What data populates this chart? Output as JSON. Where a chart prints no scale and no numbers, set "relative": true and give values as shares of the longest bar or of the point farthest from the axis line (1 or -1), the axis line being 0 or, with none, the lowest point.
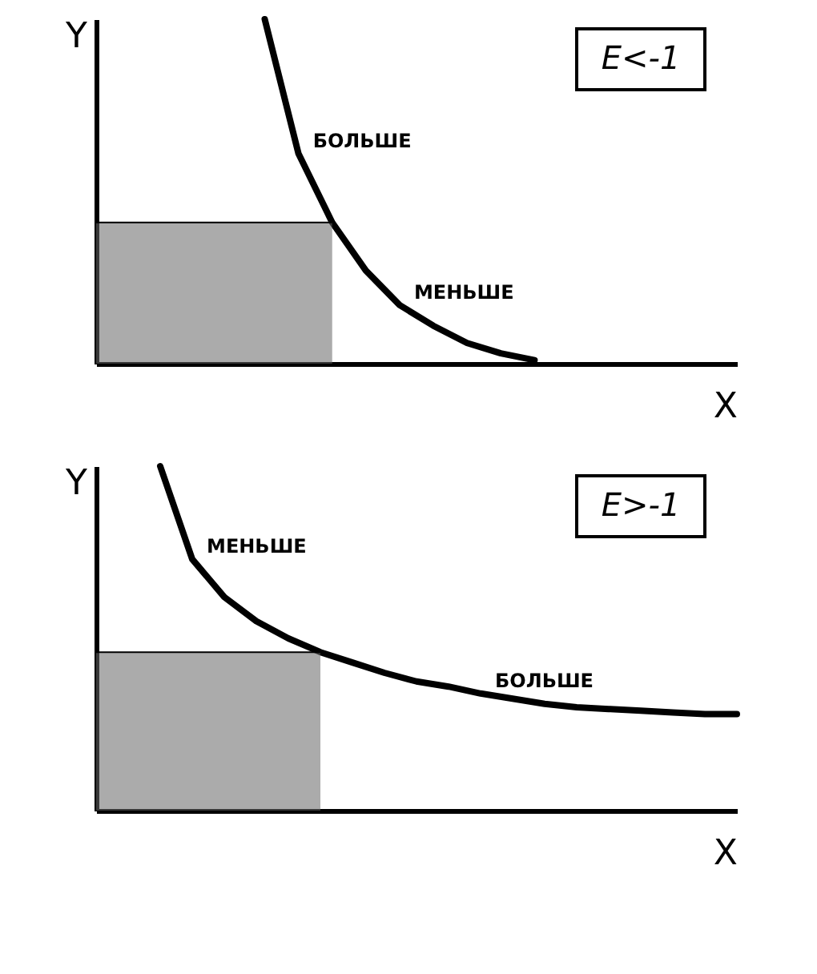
{
  "chart_data": [
    {
      "type": "line",
      "relative": true,
      "xlabel": "X",
      "ylabel": "Y",
      "grid": false,
      "categories": [
        null,
        null,
        null,
        null,
        null,
        null,
        null,
        null,
        null,
        null,
        null,
        null,
        null,
        null,
        null,
        null,
        null,
        null,
        null,
        null
      ],
      "series": [
        {
          "color": "#000000",
          "values": [
            null,
            null,
            null,
            null,
            null,
            1.0,
            0.61,
            0.41,
            0.27,
            0.17,
            0.11,
            0.06,
            0.03,
            0.01,
            null,
            null,
            null,
            null,
            null,
            null
          ]
        },
        {
          "type": "area",
          "color": "#666666",
          "values": [
            0.41,
            0.41,
            0.41,
            0.41,
            0.41,
            0.41,
            0.41,
            0.41,
            null,
            null,
            null,
            null,
            null,
            null,
            null,
            null,
            null,
            null,
            null,
            null
          ]
        }
      ],
      "annotations": [
        "E<-1",
        "БОЛЬШЕ",
        "МЕНЬШЕ"
      ]
    },
    {
      "type": "line",
      "relative": true,
      "xlabel": "X",
      "ylabel": "Y",
      "grid": false,
      "categories": [
        null,
        null,
        null,
        null,
        null,
        null,
        null,
        null,
        null,
        null,
        null,
        null,
        null,
        null,
        null,
        null,
        null,
        null,
        null,
        null,
        null
      ],
      "series": [
        {
          "color": "#000000",
          "values": [
            null,
            null,
            1.0,
            0.73,
            0.62,
            0.55,
            0.5,
            0.46,
            0.43,
            0.4,
            0.375,
            0.36,
            0.34,
            0.325,
            0.31,
            0.3,
            0.295,
            0.29,
            0.285,
            0.28,
            0.28
          ]
        },
        {
          "type": "area",
          "color": "#666666",
          "values": [
            0.46,
            0.46,
            0.46,
            0.46,
            0.46,
            0.46,
            0.46,
            0.46,
            null,
            null,
            null,
            null,
            null,
            null,
            null,
            null,
            null,
            null,
            null,
            null,
            null
          ]
        }
      ],
      "annotations": [
        "E>-1",
        "МЕНЬШЕ",
        "БОЛЬШЕ"
      ]
    }
  ]
}
